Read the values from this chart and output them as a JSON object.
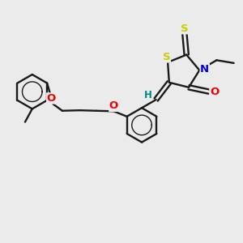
{
  "background_color": "#ebebeb",
  "bond_color": "#1a1a1a",
  "atom_colors": {
    "S": "#cccc00",
    "N": "#0000ee",
    "O": "#ee0000",
    "H": "#008888"
  },
  "figsize": [
    3.0,
    3.0
  ],
  "dpi": 100,
  "xlim": [
    0,
    10
  ],
  "ylim": [
    0,
    10
  ]
}
